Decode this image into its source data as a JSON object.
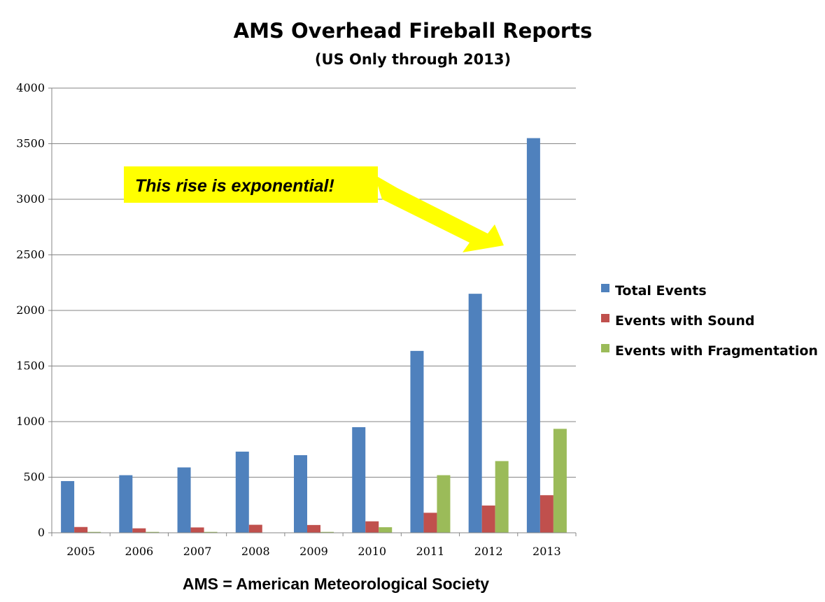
{
  "chart_data": {
    "type": "bar",
    "title": "AMS Overhead Fireball Reports",
    "subtitle": "(US Only through  2013)",
    "categories": [
      "2005",
      "2006",
      "2007",
      "2008",
      "2009",
      "2010",
      "2011",
      "2012",
      "2013"
    ],
    "series": [
      {
        "name": "Total Events",
        "color": "#4F81BD",
        "values": [
          465,
          518,
          588,
          730,
          698,
          950,
          1636,
          2150,
          3550
        ]
      },
      {
        "name": "Events with Sound",
        "color": "#C0504D",
        "values": [
          52,
          40,
          48,
          72,
          70,
          103,
          180,
          245,
          338
        ]
      },
      {
        "name": "Events with Fragmentation",
        "color": "#9BBB59",
        "values": [
          8,
          8,
          8,
          0,
          8,
          50,
          518,
          645,
          935
        ]
      }
    ],
    "ylim": [
      0,
      4000
    ],
    "yticks": [
      0,
      500,
      1000,
      1500,
      2000,
      2500,
      3000,
      3500,
      4000
    ],
    "grid": true,
    "legend_position": "right"
  },
  "annotation": {
    "text": "This rise is exponential!",
    "color": "#FFFF00"
  },
  "footer": "AMS = American Meteorological Society"
}
